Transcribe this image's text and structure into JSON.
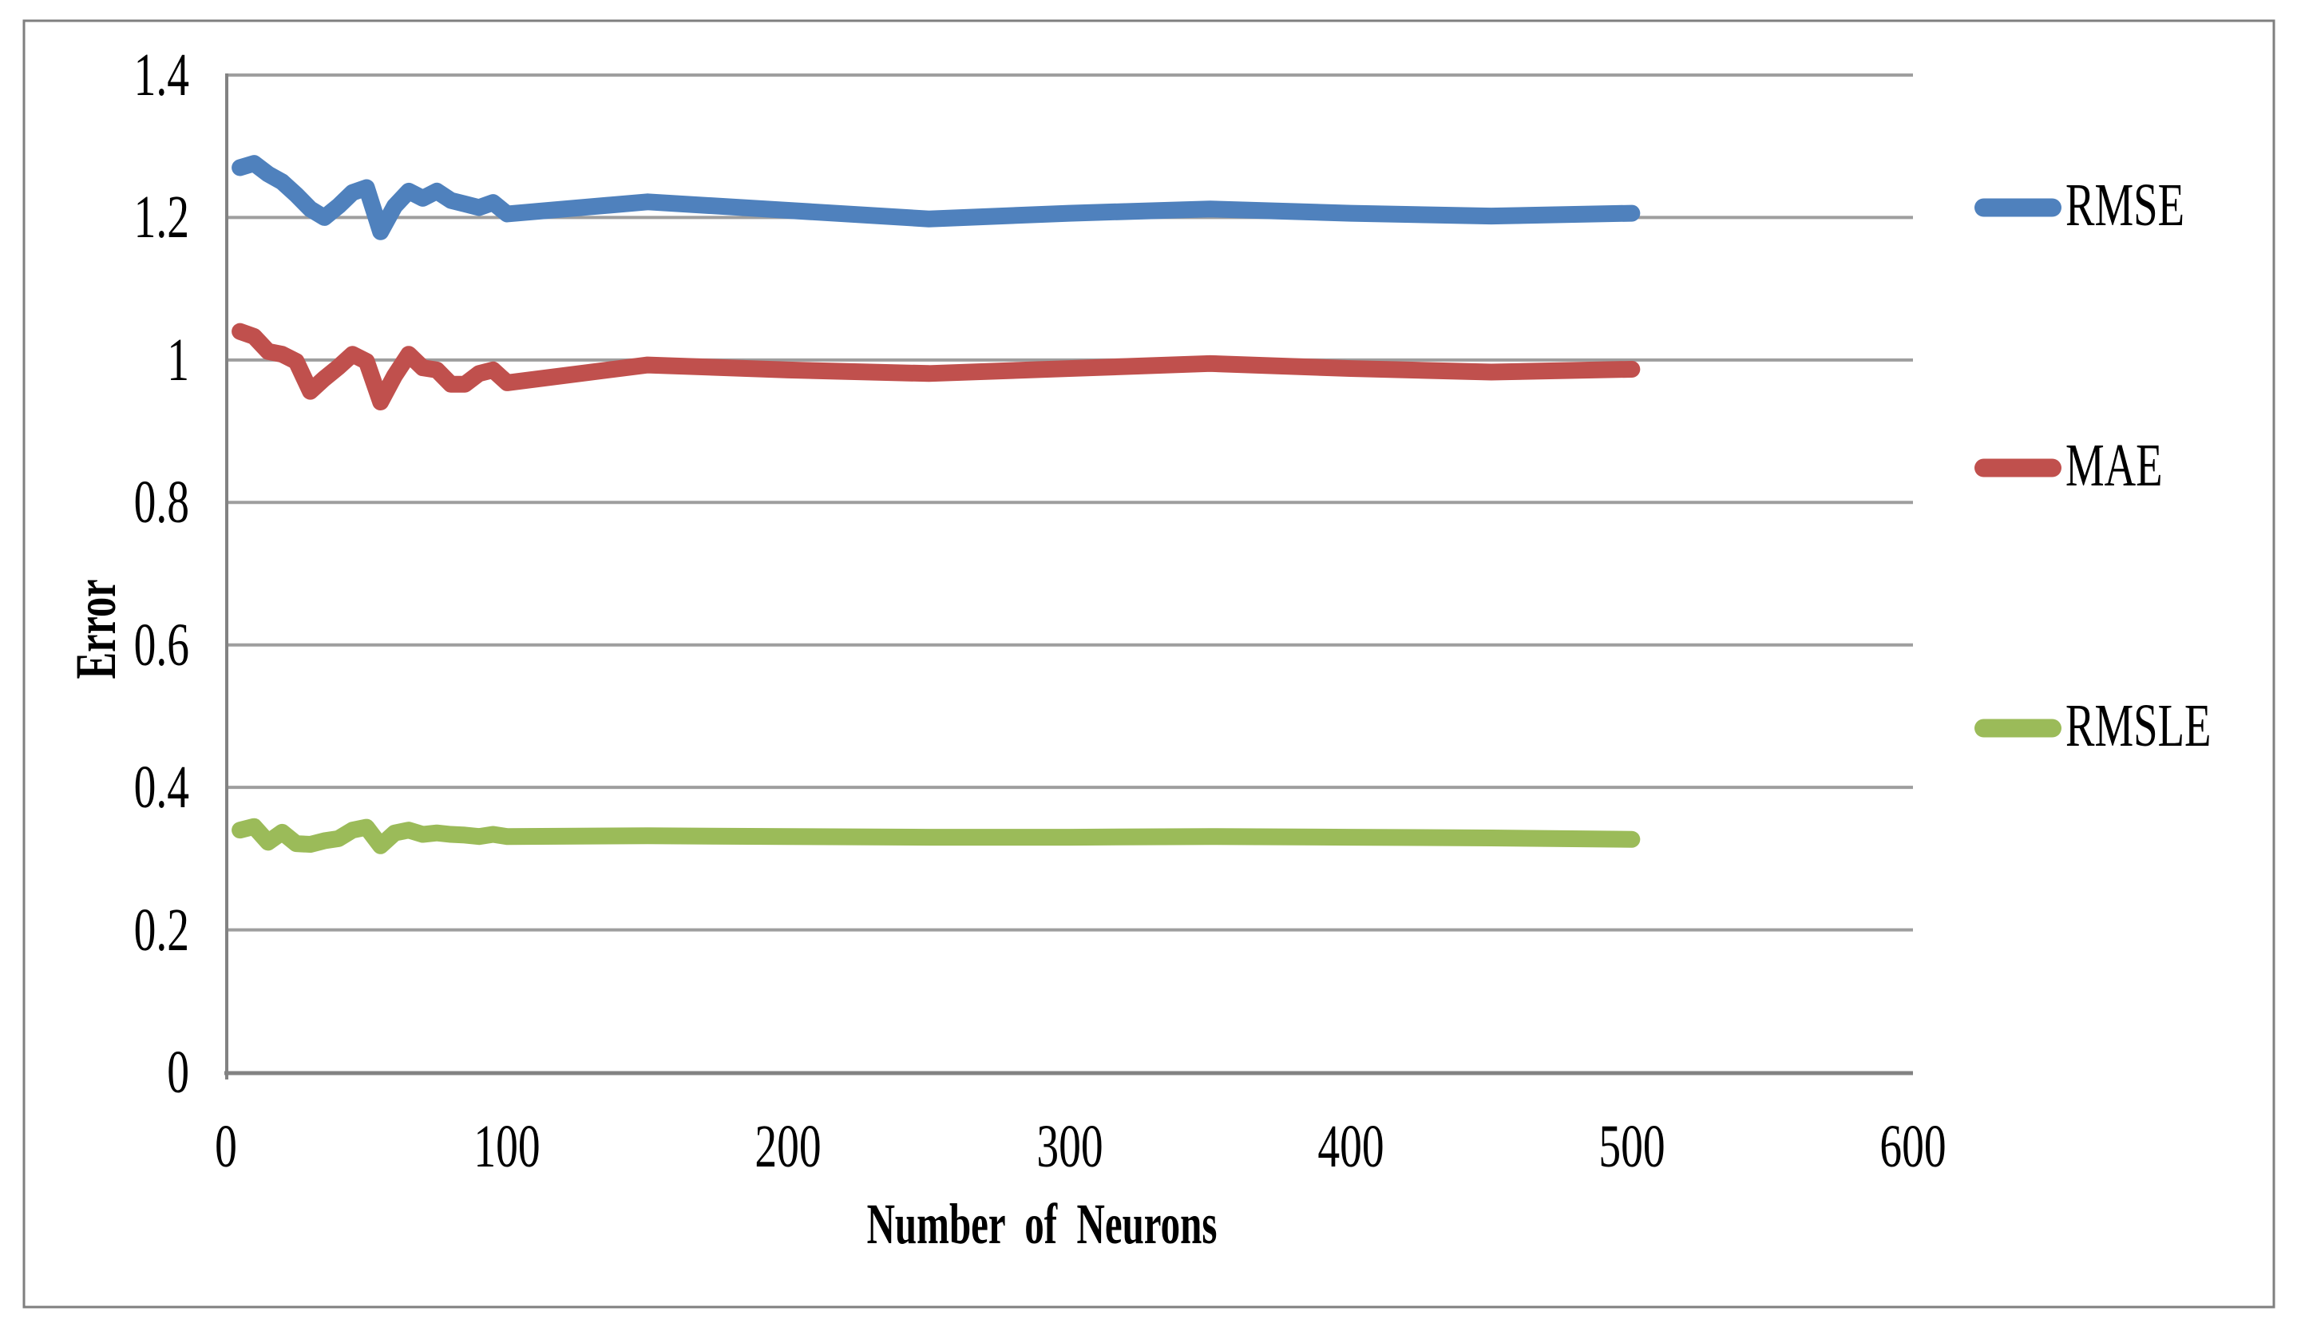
{
  "figure": {
    "background_color": "#ffffff",
    "border_color": "#7f7f7f"
  },
  "colors": {
    "axis": "#828282",
    "gridline": "#9e9e9e"
  },
  "chart_data": {
    "type": "line",
    "title": "",
    "xlabel": "Number of Neurons",
    "ylabel": "Error",
    "xlim": [
      0,
      600
    ],
    "ylim": [
      0,
      1.4
    ],
    "grid": "horizontal",
    "legend_position": "right",
    "x_ticks": [
      "0",
      "100",
      "200",
      "300",
      "400",
      "500",
      "600"
    ],
    "x_tick_values": [
      0,
      100,
      200,
      300,
      400,
      500,
      600
    ],
    "y_ticks": [
      "0",
      "0.2",
      "0.4",
      "0.6",
      "0.8",
      "1",
      "1.2",
      "1.4"
    ],
    "y_tick_values": [
      0,
      0.2,
      0.4,
      0.6,
      0.8,
      1,
      1.2,
      1.4
    ],
    "x": [
      5,
      10,
      15,
      20,
      25,
      30,
      35,
      40,
      45,
      50,
      55,
      60,
      65,
      70,
      75,
      80,
      85,
      90,
      95,
      100,
      150,
      200,
      250,
      300,
      350,
      400,
      450,
      500
    ],
    "series": [
      {
        "name": "RMSE",
        "color": "#4F81BD",
        "values": [
          1.27,
          1.276,
          1.261,
          1.25,
          1.232,
          1.212,
          1.2,
          1.216,
          1.235,
          1.242,
          1.18,
          1.216,
          1.237,
          1.227,
          1.237,
          1.224,
          1.219,
          1.214,
          1.221,
          1.205,
          1.222,
          1.21,
          1.198,
          1.206,
          1.212,
          1.206,
          1.202,
          1.206
        ]
      },
      {
        "name": "MAE",
        "color": "#C0504D",
        "values": [
          1.04,
          1.033,
          1.012,
          1.008,
          0.998,
          0.956,
          0.974,
          0.99,
          1.008,
          0.998,
          0.941,
          0.978,
          1.008,
          0.989,
          0.986,
          0.966,
          0.966,
          0.981,
          0.986,
          0.968,
          0.993,
          0.986,
          0.981,
          0.988,
          0.995,
          0.988,
          0.983,
          0.987
        ]
      },
      {
        "name": "RMSLE",
        "color": "#9BBB59",
        "values": [
          0.34,
          0.345,
          0.323,
          0.337,
          0.321,
          0.32,
          0.325,
          0.328,
          0.34,
          0.344,
          0.318,
          0.336,
          0.34,
          0.334,
          0.336,
          0.334,
          0.333,
          0.331,
          0.334,
          0.331,
          0.332,
          0.331,
          0.33,
          0.33,
          0.331,
          0.33,
          0.329,
          0.327
        ]
      }
    ]
  }
}
